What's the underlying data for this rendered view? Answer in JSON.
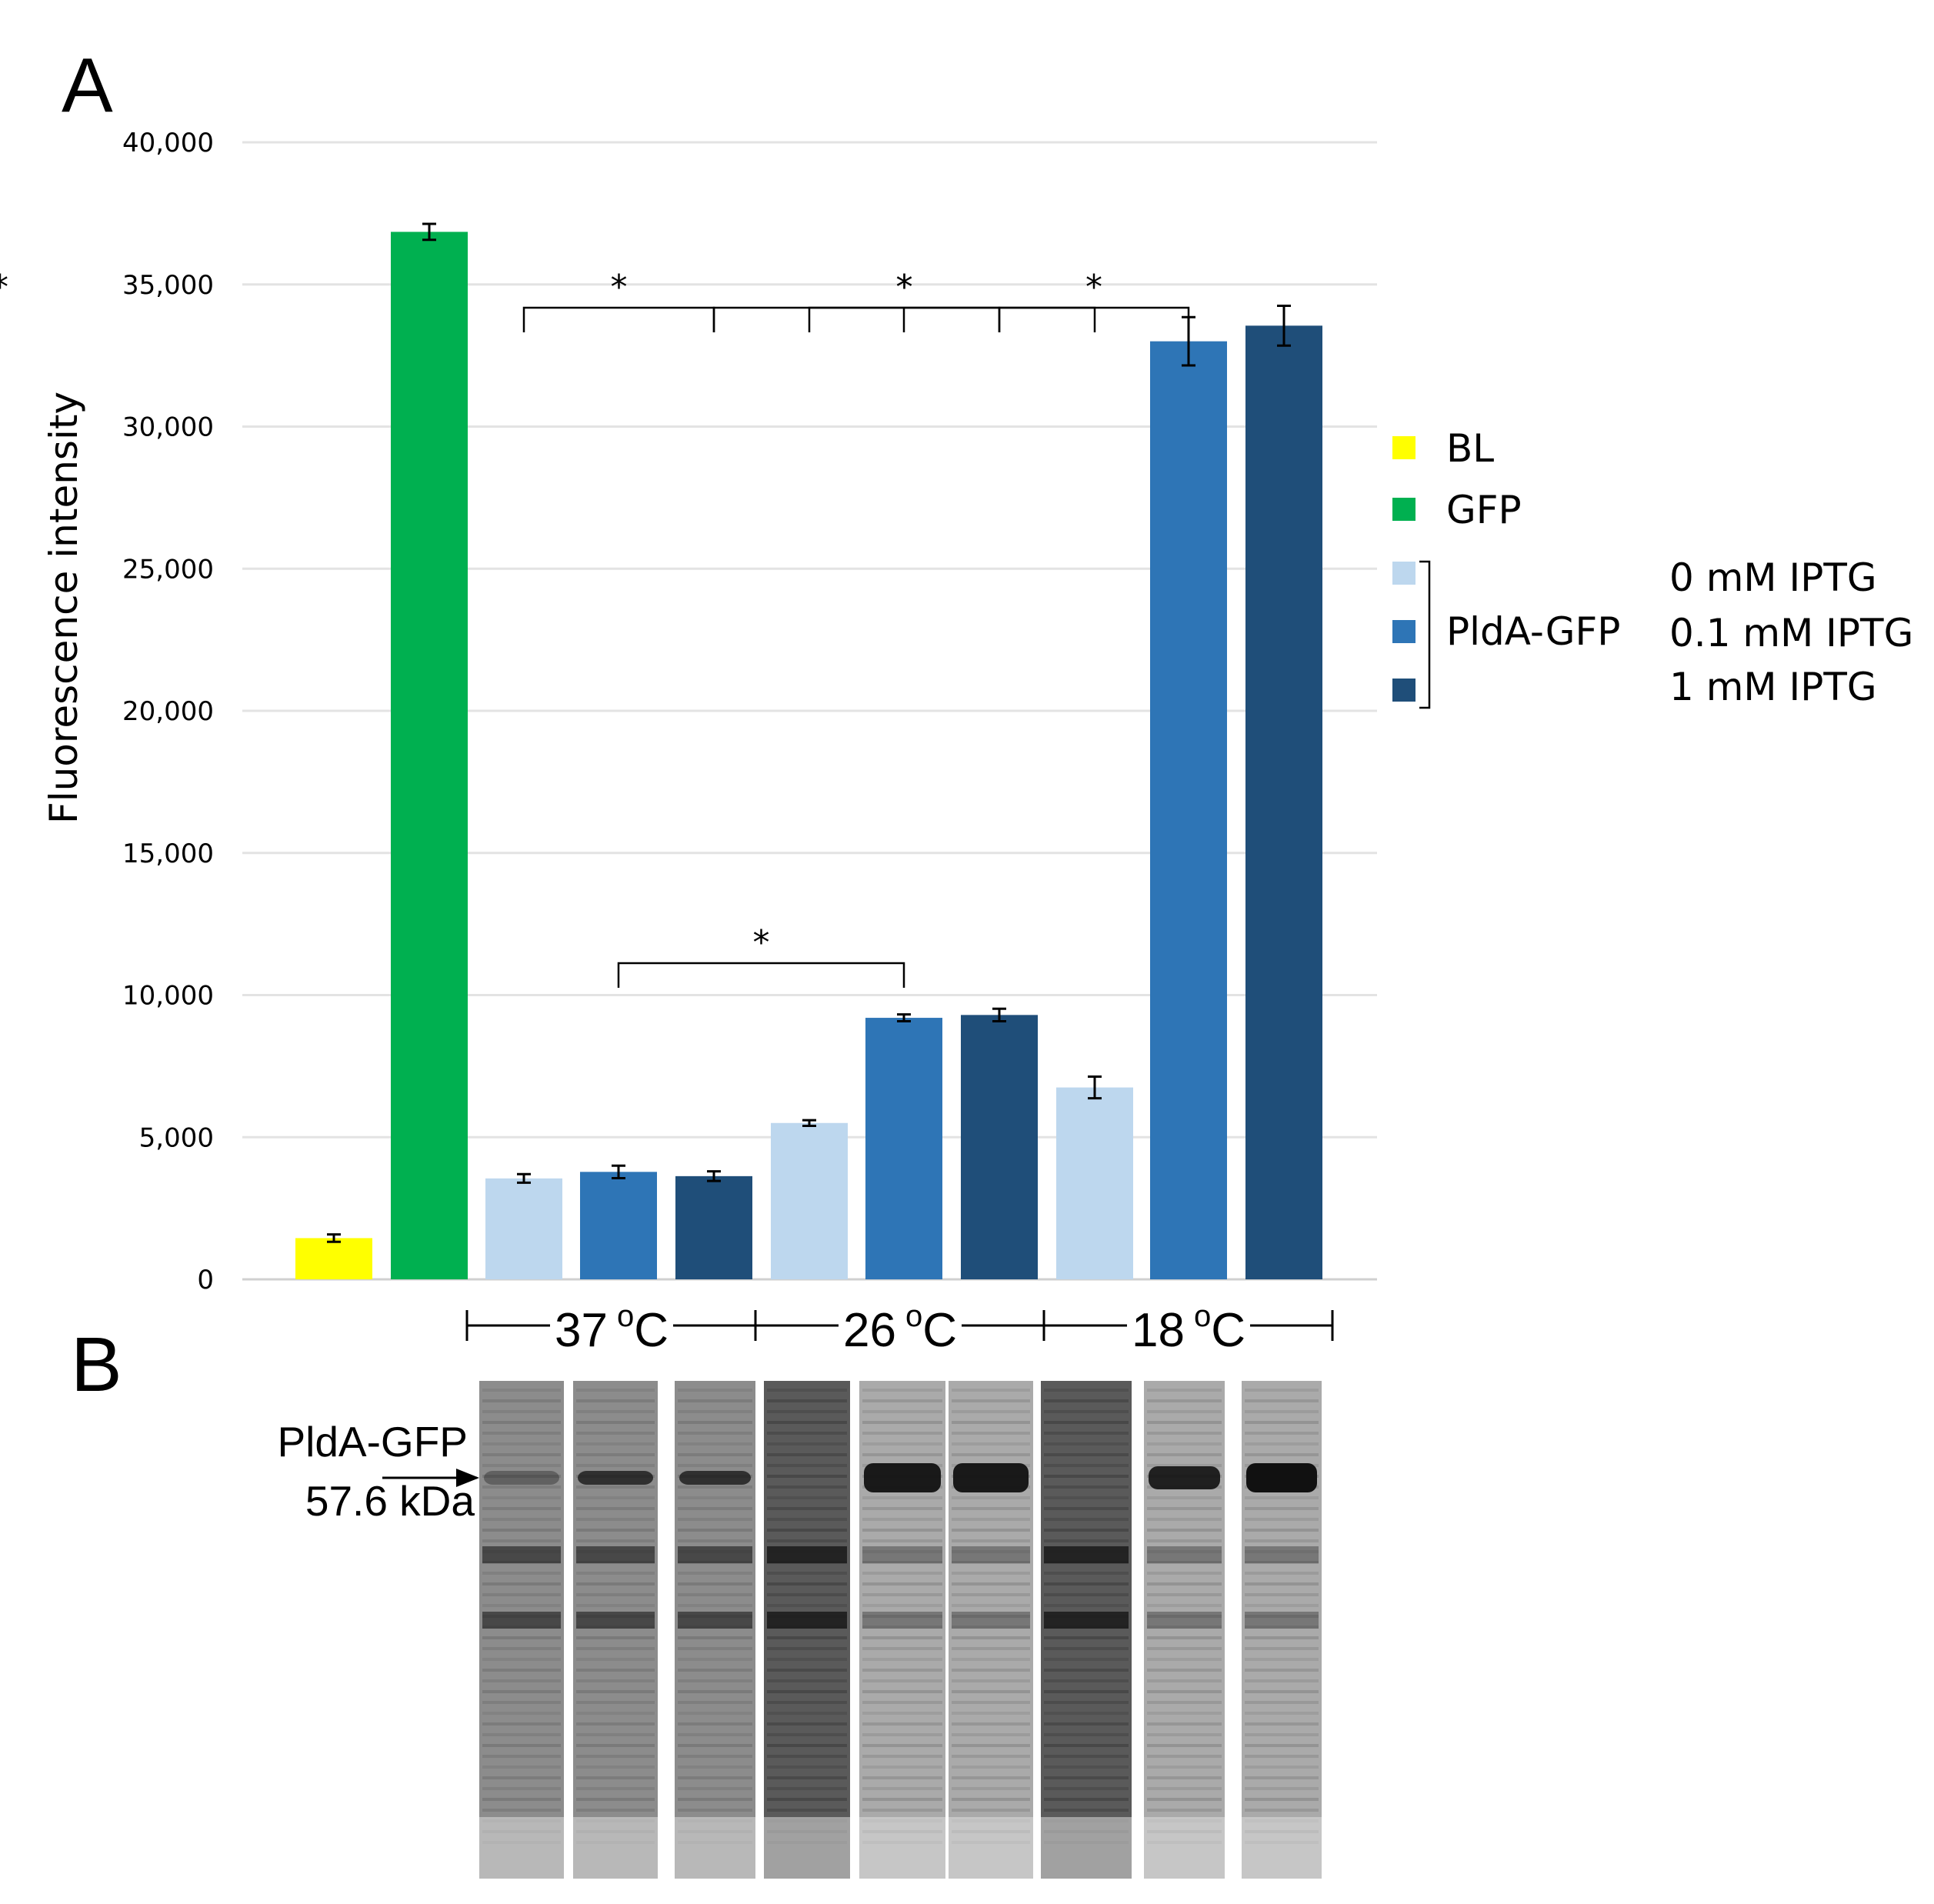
{
  "panel_a_label": "A",
  "panel_b_label": "B",
  "chart_data": {
    "type": "bar",
    "ylabel": "Fluorescence intensity",
    "xlabel": "",
    "ylim": [
      0,
      40000
    ],
    "grid": true,
    "yticks": [
      {
        "value": 0,
        "label": "0"
      },
      {
        "value": 5000,
        "label": "5,000"
      },
      {
        "value": 10000,
        "label": "10,000"
      },
      {
        "value": 15000,
        "label": "15,000"
      },
      {
        "value": 20000,
        "label": "20,000"
      },
      {
        "value": 25000,
        "label": "25,000"
      },
      {
        "value": 30000,
        "label": "30,000"
      },
      {
        "value": 35000,
        "label": "35,000"
      },
      {
        "value": 40000,
        "label": "40,000"
      }
    ],
    "bars": [
      {
        "strain": "BL",
        "temperature": "",
        "iptg": "",
        "value": 1450,
        "error": 130,
        "color": "#ffff00"
      },
      {
        "strain": "GFP",
        "temperature": "",
        "iptg": "",
        "value": 36850,
        "error": 280,
        "color": "#00b050"
      },
      {
        "strain": "PldA-GFP",
        "temperature": "37 oC",
        "iptg": "0 mM IPTG",
        "value": 3550,
        "error": 150,
        "color": "#bdd7ee"
      },
      {
        "strain": "PldA-GFP",
        "temperature": "37 oC",
        "iptg": "0.1 mM IPTG",
        "value": 3780,
        "error": 220,
        "color": "#2e75b6"
      },
      {
        "strain": "PldA-GFP",
        "temperature": "37 oC",
        "iptg": "1 mM IPTG",
        "value": 3630,
        "error": 170,
        "color": "#1f4e79"
      },
      {
        "strain": "PldA-GFP",
        "temperature": "26 oC",
        "iptg": "0 mM IPTG",
        "value": 5500,
        "error": 100,
        "color": "#bdd7ee"
      },
      {
        "strain": "PldA-GFP",
        "temperature": "26 oC",
        "iptg": "0.1 mM IPTG",
        "value": 9200,
        "error": 120,
        "color": "#2e75b6"
      },
      {
        "strain": "PldA-GFP",
        "temperature": "26 oC",
        "iptg": "1 mM IPTG",
        "value": 9300,
        "error": 220,
        "color": "#1f4e79"
      },
      {
        "strain": "PldA-GFP",
        "temperature": "18 oC",
        "iptg": "0 mM IPTG",
        "value": 6750,
        "error": 380,
        "color": "#bdd7ee"
      },
      {
        "strain": "PldA-GFP",
        "temperature": "18 oC",
        "iptg": "0.1 mM IPTG",
        "value": 33000,
        "error": 850,
        "color": "#2e75b6"
      },
      {
        "strain": "PldA-GFP",
        "temperature": "18 oC",
        "iptg": "1 mM IPTG",
        "value": 33550,
        "error": 700,
        "color": "#1f4e79"
      }
    ],
    "legend": {
      "placement": "right",
      "items": [
        {
          "label": "BL",
          "color": "#ffff00"
        },
        {
          "label": "GFP",
          "color": "#00b050"
        },
        {
          "label": "",
          "color": "#bdd7ee"
        },
        {
          "label": "PldA-GFP",
          "color": "#2e75b6"
        },
        {
          "label": "",
          "color": "#1f4e79"
        }
      ],
      "iptg_labels": [
        "0 mM IPTG",
        "0.1 mM IPTG",
        "1 mM IPTG"
      ]
    },
    "temperature_groups": [
      {
        "number": "37",
        "degree": "o",
        "unit": "C"
      },
      {
        "number": "26",
        "degree": "o",
        "unit": "C"
      },
      {
        "number": "18",
        "degree": "o",
        "unit": "C"
      }
    ],
    "significance": [
      {
        "from": 2,
        "to": 4,
        "level": 2400,
        "label": "*"
      },
      {
        "from": 3,
        "to": 6,
        "level": 2080,
        "label": "*"
      },
      {
        "from": 6,
        "to": 11,
        "level": 1900,
        "label": "*"
      },
      {
        "from": 7,
        "to": 9,
        "level": 1700,
        "label": "*"
      },
      {
        "from": 4,
        "to": 8,
        "level": 720,
        "label": "*"
      },
      {
        "from": 5,
        "to": 7,
        "level": 655,
        "label": "*"
      }
    ]
  },
  "gel": {
    "band_label": "PldA-GFP",
    "size_label": "57.6 kDa",
    "lanes": 9
  }
}
